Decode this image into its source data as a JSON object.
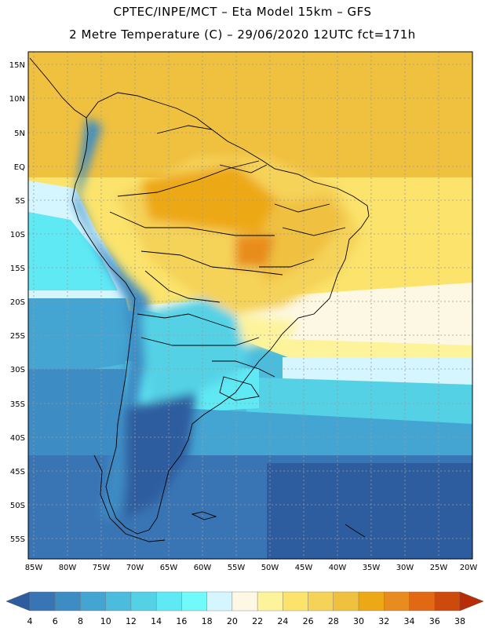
{
  "header": {
    "line1": "CPTEC/INPE/MCT –  Eta Model 15km – GFS",
    "line2": "2 Metre Temperature (C) – 29/06/2020 12UTC fct=171h"
  },
  "map": {
    "lat_labels": [
      "15N",
      "10N",
      "5N",
      "EQ",
      "5S",
      "10S",
      "15S",
      "20S",
      "25S",
      "30S",
      "35S",
      "40S",
      "45S",
      "50S",
      "55S"
    ],
    "lon_labels": [
      "85W",
      "80W",
      "75W",
      "70W",
      "65W",
      "60W",
      "55W",
      "50W",
      "45W",
      "40W",
      "35W",
      "30W",
      "25W",
      "20W"
    ]
  },
  "colorbar": {
    "labels": [
      "4",
      "6",
      "8",
      "10",
      "12",
      "14",
      "16",
      "18",
      "20",
      "22",
      "24",
      "26",
      "28",
      "30",
      "32",
      "34",
      "36",
      "38"
    ],
    "colors": [
      "#2e5d9f",
      "#3975b4",
      "#3d8cc4",
      "#44a4d2",
      "#4cbcdc",
      "#55d1e6",
      "#5fe9f5",
      "#72f9f9",
      "#d6f6ff",
      "#fdf8e4",
      "#fdf39b",
      "#fbe36c",
      "#f5d258",
      "#f0c03f",
      "#eda816",
      "#e88c1f",
      "#e16914",
      "#cc4a0c",
      "#b82d08"
    ]
  }
}
